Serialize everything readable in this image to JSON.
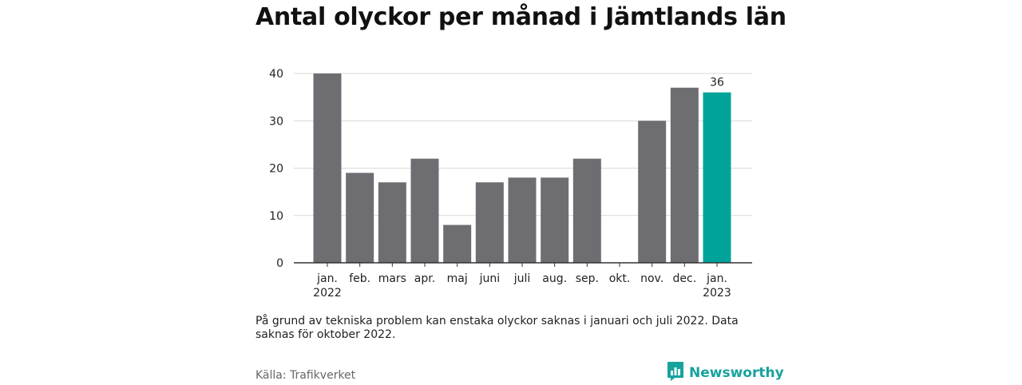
{
  "title": "Antal olyckor per månad i Jämtlands län",
  "note": "På grund av tekniska problem kan enstaka olyckor saknas i januari och juli 2022. Data saknas för oktober 2022.",
  "source": "Källa: Trafikverket",
  "brand": {
    "name": "Newsworthy",
    "icon": "bar-chart-logo-icon"
  },
  "colors": {
    "bar": "#6e6d72",
    "highlight": "#00a39a",
    "grid": "#d9d9d9",
    "axis": "#333333"
  },
  "chart_data": {
    "type": "bar",
    "categories": [
      "jan. 2022",
      "feb.",
      "mars",
      "apr.",
      "maj",
      "juni",
      "juli",
      "aug.",
      "sep.",
      "okt.",
      "nov.",
      "dec.",
      "jan. 2023"
    ],
    "category_lines": [
      [
        "jan.",
        "2022"
      ],
      [
        "feb."
      ],
      [
        "mars"
      ],
      [
        "apr."
      ],
      [
        "maj"
      ],
      [
        "juni"
      ],
      [
        "juli"
      ],
      [
        "aug."
      ],
      [
        "sep."
      ],
      [
        "okt."
      ],
      [
        "nov."
      ],
      [
        "dec."
      ],
      [
        "jan.",
        "2023"
      ]
    ],
    "values": [
      40,
      19,
      17,
      22,
      8,
      17,
      18,
      18,
      22,
      null,
      30,
      37,
      36
    ],
    "highlight_index": 12,
    "data_labels": [
      {
        "index": 12,
        "text": "36"
      }
    ],
    "ylim": [
      0,
      40
    ],
    "yticks": [
      0,
      10,
      20,
      30,
      40
    ],
    "grid": true,
    "title": "Antal olyckor per månad i Jämtlands län"
  }
}
